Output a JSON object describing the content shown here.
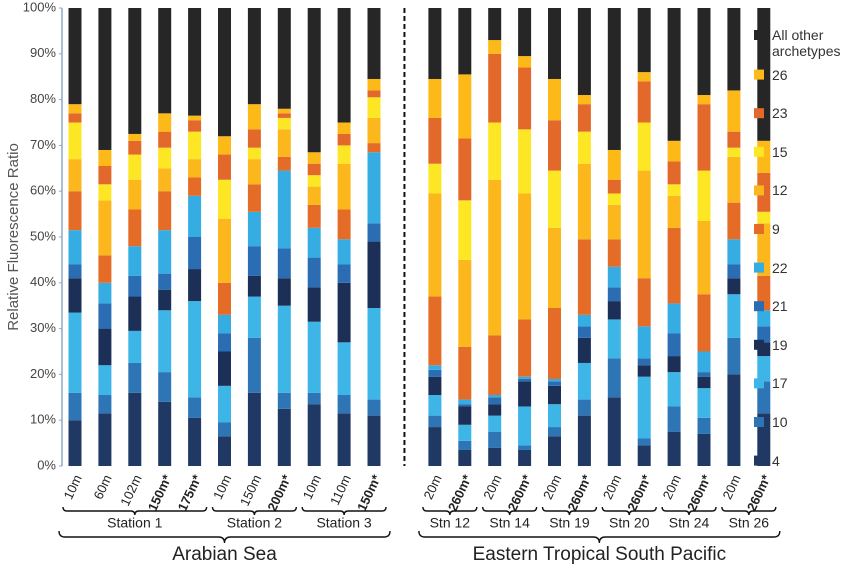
{
  "chart_data": {
    "type": "stacked_bar",
    "ylabel": "Relative Fluorescence Ratio",
    "categories": [
      "10m",
      "60m",
      "102m",
      "150m*",
      "175m*",
      "10m",
      "150m",
      "200m*",
      "10m",
      "110m",
      "150m*",
      "20m",
      "260m*",
      "20m",
      "260m*",
      "20m",
      "260m*",
      "20m",
      "260m*",
      "20m",
      "260m*",
      "20m",
      "260m*"
    ],
    "bold": [
      false,
      false,
      false,
      true,
      true,
      false,
      false,
      true,
      false,
      false,
      true,
      false,
      true,
      false,
      true,
      false,
      true,
      false,
      true,
      false,
      true,
      false,
      true
    ],
    "stations": [
      {
        "label": "Station 1",
        "first": 0,
        "last": 4
      },
      {
        "label": "Station 2",
        "first": 5,
        "last": 7
      },
      {
        "label": "Station 3",
        "first": 8,
        "last": 10
      },
      {
        "label": "Stn 12",
        "first": 11,
        "last": 12
      },
      {
        "label": "Stn 14",
        "first": 13,
        "last": 14
      },
      {
        "label": "Stn 19",
        "first": 15,
        "last": 16
      },
      {
        "label": "Stn 20",
        "first": 17,
        "last": 18
      },
      {
        "label": "Stn 24",
        "first": 19,
        "last": 20
      },
      {
        "label": "Stn 26",
        "first": 21,
        "last": 22
      }
    ],
    "regions": [
      {
        "label": "Arabian Sea",
        "first": 0,
        "last": 10
      },
      {
        "label": "Eastern Tropical South Pacific",
        "first": 11,
        "last": 22
      }
    ],
    "ylim": [
      0,
      100
    ],
    "yticks": [
      {
        "value": 0,
        "label": "0%"
      },
      {
        "value": 10,
        "label": "10%"
      },
      {
        "value": 20,
        "label": "20%"
      },
      {
        "value": 30,
        "label": "30%"
      },
      {
        "value": 40,
        "label": "40%"
      },
      {
        "value": 50,
        "label": "50%"
      },
      {
        "value": 60,
        "label": "60%"
      },
      {
        "value": 70,
        "label": "70%"
      },
      {
        "value": 80,
        "label": "80%"
      },
      {
        "value": 90,
        "label": "90%"
      },
      {
        "value": 100,
        "label": "100%"
      }
    ],
    "grid": false,
    "legend_position": "right",
    "series": [
      {
        "name": "4",
        "color": "#1f3864",
        "values": [
          10,
          11.5,
          16,
          14,
          10.5,
          6.5,
          16,
          12.5,
          13.5,
          11.5,
          11,
          8.5,
          3.5,
          4,
          3.5,
          6.5,
          11,
          15,
          4.5,
          7.5,
          7,
          20,
          11.5
        ]
      },
      {
        "name": "10",
        "color": "#2e75b6",
        "values": [
          6,
          4,
          6.5,
          6.5,
          4.5,
          3,
          12,
          3.5,
          2.5,
          4,
          3.5,
          2.5,
          2,
          3.5,
          1,
          2,
          3.5,
          8.5,
          1.5,
          5.5,
          3.5,
          8,
          7
        ]
      },
      {
        "name": "17",
        "color": "#3db5e6",
        "values": [
          17.5,
          6.5,
          7,
          13.5,
          21,
          8,
          9,
          19,
          15.5,
          11.5,
          20,
          4.5,
          3.5,
          3.5,
          8.5,
          5,
          8,
          8.5,
          13.5,
          7.5,
          6.5,
          9.5,
          5.5
        ]
      },
      {
        "name": "19",
        "color": "#1b2f57",
        "values": [
          7.5,
          8,
          7.5,
          4.5,
          7,
          7.5,
          4.5,
          6,
          7.5,
          13,
          14.5,
          4,
          4,
          2.5,
          5.5,
          4,
          5.5,
          4,
          2.5,
          3.5,
          2.5,
          3.5,
          3
        ]
      },
      {
        "name": "21",
        "color": "#2b6db2",
        "values": [
          3,
          5.5,
          4.5,
          3.5,
          7,
          4,
          6.5,
          6.5,
          6.5,
          4,
          4,
          1.5,
          0.5,
          1.5,
          0.5,
          1,
          2.5,
          3,
          1.5,
          5,
          1,
          3,
          3.5
        ]
      },
      {
        "name": "22",
        "color": "#35ade3",
        "values": [
          7.5,
          4.5,
          6.5,
          9.5,
          9,
          4,
          7.5,
          17,
          6.5,
          5.5,
          15.5,
          1,
          1,
          0.5,
          0.5,
          0.5,
          2.5,
          4.5,
          7,
          6.5,
          4.5,
          5.5,
          3.5
        ]
      },
      {
        "name": "9",
        "color": "#e46c27",
        "values": [
          8.5,
          6,
          8,
          8.5,
          4,
          7,
          6,
          3,
          5,
          6.5,
          2,
          15,
          11.5,
          13,
          12.5,
          15.5,
          16.5,
          6,
          10.5,
          16.5,
          12.5,
          8,
          7.5
        ]
      },
      {
        "name": "12",
        "color": "#fbb71c",
        "values": [
          7,
          12,
          6.5,
          5,
          4,
          14,
          5.5,
          6,
          4,
          10,
          5.5,
          22.5,
          19,
          34,
          27.5,
          17.5,
          16.5,
          7.5,
          23.5,
          7,
          16,
          10,
          11.5
        ]
      },
      {
        "name": "15",
        "color": "#fde724",
        "values": [
          8,
          3.5,
          5.5,
          4.5,
          6,
          8.5,
          2.5,
          2.5,
          2.5,
          4,
          4.5,
          6.5,
          13,
          12.5,
          14,
          12.5,
          7,
          2.5,
          10.5,
          2.5,
          11,
          2,
          2.5
        ]
      },
      {
        "name": "23",
        "color": "#e3692a",
        "values": [
          2,
          4,
          3,
          3.5,
          2.5,
          5.5,
          4,
          1,
          2.5,
          2.5,
          1.5,
          10,
          13.5,
          15,
          13.5,
          11,
          6,
          3,
          9,
          5,
          14.5,
          3.5,
          8.5
        ]
      },
      {
        "name": "26",
        "color": "#fcb918",
        "values": [
          2,
          3.5,
          1.5,
          4,
          1,
          4,
          5.5,
          1,
          2.5,
          2.5,
          2.5,
          8.5,
          14,
          3,
          2.5,
          9,
          2,
          6.5,
          2,
          4.5,
          2,
          9,
          7
        ]
      },
      {
        "name": "All other archetypes",
        "color": "#262626",
        "values": [
          21,
          31,
          27.5,
          23,
          23.5,
          28,
          21,
          22,
          31.5,
          25,
          15.5,
          15.5,
          14.5,
          7,
          10.5,
          15.5,
          19,
          31,
          14,
          29,
          19,
          18,
          29
        ]
      }
    ]
  }
}
